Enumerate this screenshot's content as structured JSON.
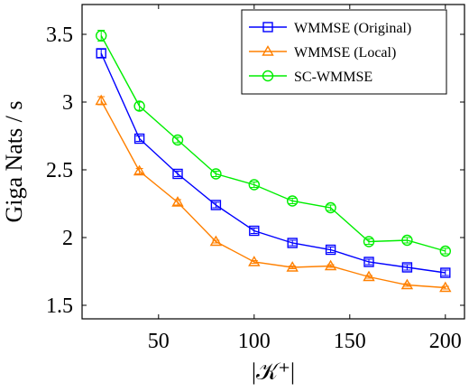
{
  "chart_data": {
    "type": "line",
    "title": "",
    "xlabel": "|𝒦⁺|",
    "ylabel": "Giga Nats / s",
    "xlim": [
      10,
      210
    ],
    "ylim": [
      1.4,
      3.72
    ],
    "xticks": [
      50,
      100,
      150,
      200
    ],
    "xtick_labels": [
      "50",
      "100",
      "150",
      "200"
    ],
    "yticks": [
      1.5,
      2,
      2.5,
      3,
      3.5
    ],
    "ytick_labels": [
      "1.5",
      "2",
      "2.5",
      "3",
      "3.5"
    ],
    "grid": false,
    "legend_position": "top-right",
    "x": [
      20,
      40,
      60,
      80,
      100,
      120,
      140,
      160,
      180,
      200
    ],
    "series": [
      {
        "name": "WMMSE (Original)",
        "color": "#0000ff",
        "marker": "square",
        "values": [
          3.36,
          2.73,
          2.47,
          2.24,
          2.05,
          1.96,
          1.91,
          1.82,
          1.78,
          1.74
        ],
        "errors": [
          0.03,
          0.02,
          0.02,
          0.02,
          0.02,
          0.02,
          0.02,
          0.02,
          0.02,
          0.02
        ]
      },
      {
        "name": "WMMSE (Local)",
        "color": "#ff8000",
        "marker": "triangle",
        "values": [
          3.01,
          2.49,
          2.26,
          1.97,
          1.82,
          1.78,
          1.79,
          1.71,
          1.65,
          1.63
        ],
        "errors": [
          0.03,
          0.02,
          0.02,
          0.01,
          0.01,
          0.01,
          0.01,
          0.01,
          0.01,
          0.01
        ]
      },
      {
        "name": "SC-WMMSE",
        "color": "#00ee00",
        "marker": "circle",
        "values": [
          3.49,
          2.97,
          2.72,
          2.47,
          2.39,
          2.27,
          2.22,
          1.97,
          1.98,
          1.9
        ],
        "errors": [
          0.04,
          0.03,
          0.02,
          0.02,
          0.02,
          0.02,
          0.02,
          0.02,
          0.02,
          0.02
        ]
      }
    ]
  }
}
